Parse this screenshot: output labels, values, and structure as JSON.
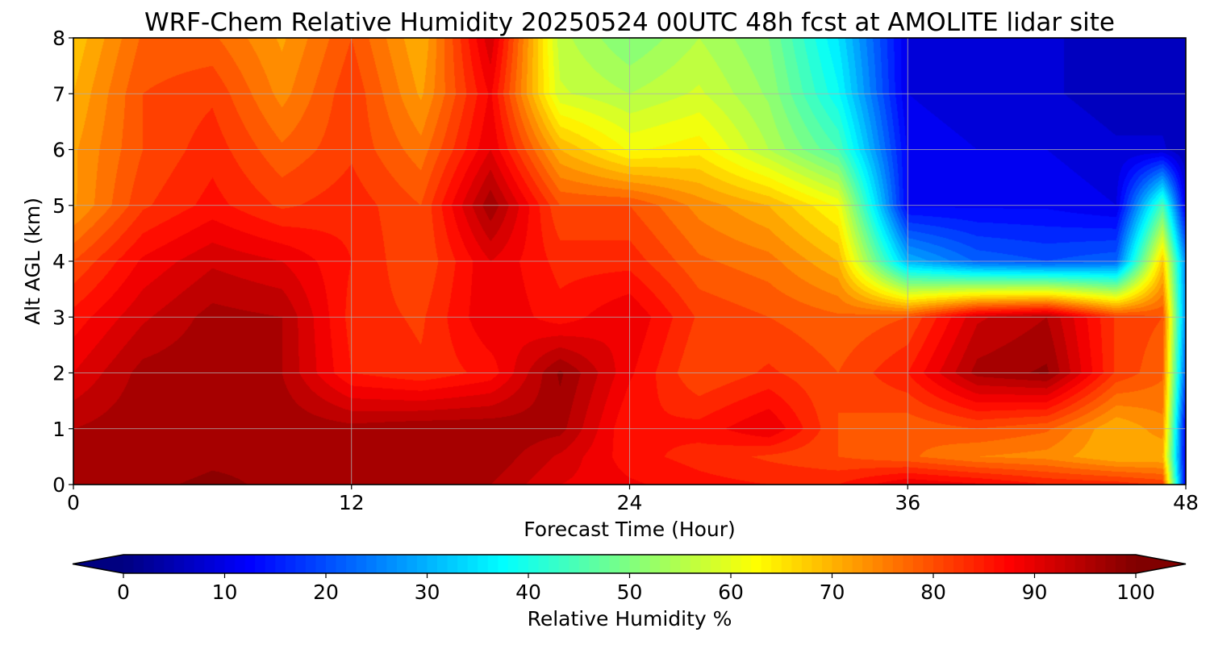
{
  "chart_data": {
    "type": "heatmap",
    "title": "WRF-Chem Relative Humidity 20250524 00UTC 48h fcst at AMOLITE lidar site",
    "xlabel": "Forecast Time (Hour)",
    "ylabel": "Alt AGL (km)",
    "xlim": [
      0,
      48
    ],
    "ylim": [
      0,
      8
    ],
    "xticks": [
      0,
      12,
      24,
      36,
      48
    ],
    "yticks": [
      0,
      1,
      2,
      3,
      4,
      5,
      6,
      7,
      8
    ],
    "grid": true,
    "colormap": "jet",
    "colorbar": {
      "label": "Relative Humidity %",
      "orientation": "horizontal",
      "extend": "both",
      "range": [
        0,
        100
      ],
      "ticks": [
        0,
        10,
        20,
        30,
        40,
        50,
        60,
        70,
        80,
        90,
        100
      ]
    },
    "x": [
      0,
      3,
      6,
      9,
      12,
      15,
      18,
      21,
      24,
      27,
      30,
      33,
      36,
      39,
      42,
      45,
      47,
      48
    ],
    "y": [
      0,
      0.5,
      1,
      2,
      3,
      4,
      5,
      6,
      7,
      8
    ],
    "z": [
      [
        96,
        97,
        98,
        97,
        96,
        95,
        95,
        90,
        88,
        86,
        85,
        85,
        90,
        88,
        85,
        84,
        82,
        10
      ],
      [
        95,
        96,
        97,
        97,
        96,
        96,
        97,
        92,
        86,
        84,
        82,
        80,
        78,
        75,
        74,
        70,
        70,
        10
      ],
      [
        95,
        97,
        97,
        97,
        96,
        97,
        97,
        96,
        85,
        86,
        90,
        80,
        78,
        80,
        78,
        70,
        74,
        10
      ],
      [
        90,
        96,
        97,
        95,
        85,
        83,
        86,
        98,
        88,
        80,
        83,
        80,
        85,
        96,
        98,
        82,
        78,
        20
      ],
      [
        86,
        92,
        96,
        95,
        84,
        82,
        90,
        86,
        90,
        82,
        80,
        78,
        80,
        92,
        95,
        82,
        80,
        25
      ],
      [
        80,
        88,
        92,
        90,
        85,
        80,
        90,
        84,
        84,
        78,
        76,
        70,
        30,
        22,
        20,
        22,
        68,
        25
      ],
      [
        72,
        82,
        86,
        82,
        84,
        80,
        97,
        80,
        80,
        74,
        70,
        62,
        12,
        12,
        12,
        10,
        45,
        10
      ],
      [
        72,
        80,
        84,
        78,
        82,
        76,
        90,
        70,
        62,
        64,
        55,
        45,
        12,
        10,
        10,
        8,
        8,
        5
      ],
      [
        70,
        80,
        82,
        74,
        82,
        72,
        88,
        58,
        55,
        58,
        52,
        38,
        10,
        8,
        8,
        6,
        6,
        5
      ],
      [
        68,
        78,
        78,
        72,
        80,
        70,
        92,
        56,
        50,
        55,
        50,
        35,
        10,
        8,
        8,
        6,
        6,
        5
      ]
    ]
  }
}
